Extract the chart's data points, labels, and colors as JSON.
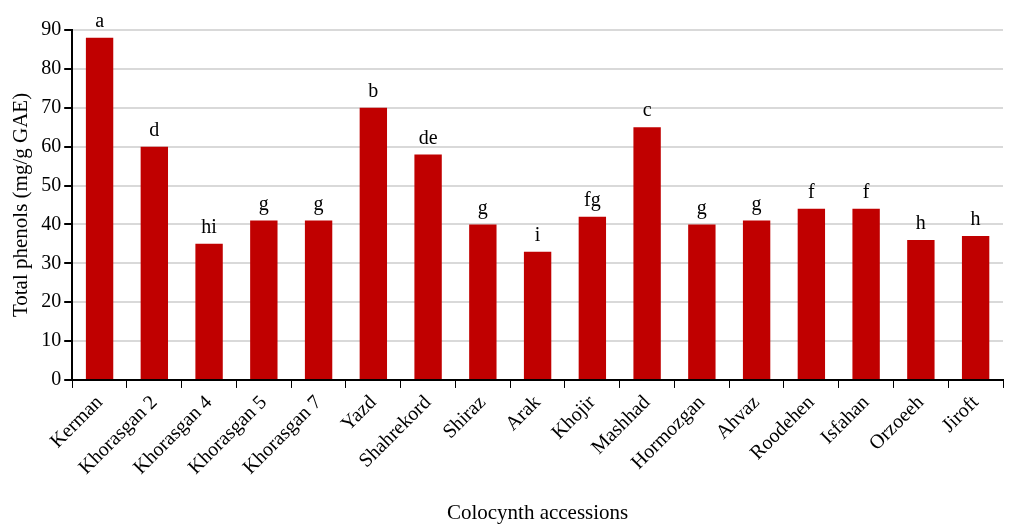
{
  "chart_data": {
    "type": "bar",
    "xlabel": "Colocynth accessions",
    "ylabel": "Total phenols (mg/g GAE)",
    "categories": [
      "Kerman",
      "Khorasgan 2",
      "Khorasgan 4",
      "Khorasgan 5",
      "Khorasgan 7",
      "Yazd",
      "Shahrekord",
      "Shiraz",
      "Arak",
      "Khojir",
      "Mashhad",
      "Hormozgan",
      "Ahvaz",
      "Roodehen",
      "Isfahan",
      "Orzoeeh",
      "Jiroft"
    ],
    "values": [
      88,
      60,
      35,
      41,
      41,
      70,
      58,
      40,
      33,
      42,
      65,
      40,
      41,
      44,
      44,
      36,
      37
    ],
    "value_labels": [
      "a",
      "d",
      "hi",
      "g",
      "g",
      "b",
      "de",
      "g",
      "i",
      "fg",
      "c",
      "g",
      "g",
      "f",
      "f",
      "h",
      "h"
    ],
    "color": "#c00000",
    "ylim": [
      0,
      90
    ],
    "yticks": [
      0,
      10,
      20,
      30,
      40,
      50,
      60,
      70,
      80,
      90
    ],
    "grid": "y",
    "legend": false
  }
}
